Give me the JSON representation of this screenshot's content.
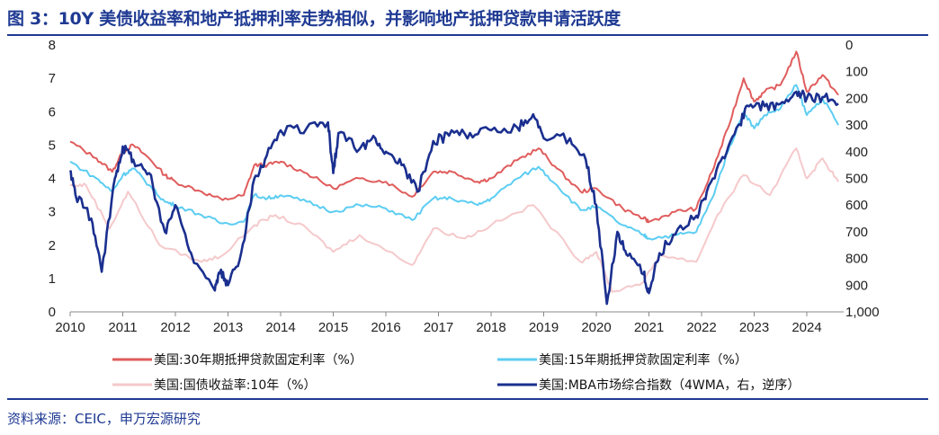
{
  "title": "图 3：10Y 美债收益率和地产抵押利率走势相似，并影响地产抵押贷款申请活跃度",
  "source": "资料来源：CEIC，申万宏源研究",
  "chart_data": {
    "type": "line",
    "title": "",
    "xlim": [
      2010,
      2024.6
    ],
    "x_ticks": [
      "2010",
      "2011",
      "2012",
      "2013",
      "2014",
      "2015",
      "2016",
      "2017",
      "2018",
      "2019",
      "2020",
      "2021",
      "2022",
      "2023",
      "2024"
    ],
    "y_left": {
      "range": [
        0,
        8
      ],
      "ticks": [
        "0",
        "1",
        "2",
        "3",
        "4",
        "5",
        "6",
        "7",
        "8"
      ]
    },
    "y_right": {
      "range": [
        0,
        1000
      ],
      "inverted": true,
      "ticks": [
        "0",
        "100",
        "200",
        "300",
        "400",
        "500",
        "600",
        "700",
        "800",
        "900",
        "1,000"
      ]
    },
    "grid": false,
    "legend_placement": "bottom",
    "series": [
      {
        "name": "美国:30年期抵押贷款固定利率（%）",
        "axis": "left",
        "color": "#e05c5c",
        "x": [
          2010,
          2010.5,
          2010.8,
          2011.0,
          2011.2,
          2011.5,
          2011.8,
          2012.0,
          2012.5,
          2012.9,
          2013.3,
          2013.5,
          2013.75,
          2014.0,
          2014.5,
          2015.0,
          2015.5,
          2016.0,
          2016.5,
          2016.9,
          2017.25,
          2017.75,
          2018.0,
          2018.5,
          2018.9,
          2019.25,
          2019.7,
          2020.0,
          2020.5,
          2020.9,
          2021.0,
          2021.5,
          2021.9,
          2022.2,
          2022.5,
          2022.8,
          2023.0,
          2023.2,
          2023.5,
          2023.8,
          2024.0,
          2024.3,
          2024.6
        ],
        "y": [
          5.1,
          4.6,
          4.2,
          4.8,
          5.0,
          4.6,
          4.1,
          3.9,
          3.6,
          3.35,
          3.5,
          4.4,
          4.4,
          4.5,
          4.15,
          3.7,
          4.0,
          3.9,
          3.45,
          4.2,
          4.2,
          3.9,
          4.0,
          4.55,
          4.9,
          4.3,
          3.6,
          3.7,
          3.1,
          2.8,
          2.7,
          3.0,
          3.1,
          4.2,
          5.5,
          7.0,
          6.3,
          6.6,
          6.8,
          7.8,
          6.6,
          7.1,
          6.5
        ]
      },
      {
        "name": "美国:15年期抵押贷款固定利率（%）",
        "axis": "left",
        "color": "#5ccdf2",
        "x": [
          2010,
          2010.5,
          2010.8,
          2011.0,
          2011.2,
          2011.5,
          2011.8,
          2012.0,
          2012.5,
          2012.9,
          2013.3,
          2013.5,
          2013.75,
          2014.0,
          2014.5,
          2015.0,
          2015.5,
          2016.0,
          2016.5,
          2016.9,
          2017.25,
          2017.75,
          2018.0,
          2018.5,
          2018.9,
          2019.25,
          2019.7,
          2020.0,
          2020.5,
          2020.9,
          2021.0,
          2021.5,
          2021.9,
          2022.2,
          2022.5,
          2022.8,
          2023.0,
          2023.2,
          2023.5,
          2023.8,
          2024.0,
          2024.3,
          2024.6
        ],
        "y": [
          4.5,
          4.0,
          3.6,
          4.1,
          4.3,
          3.8,
          3.3,
          3.2,
          2.9,
          2.65,
          2.7,
          3.5,
          3.4,
          3.5,
          3.3,
          3.0,
          3.2,
          3.1,
          2.75,
          3.4,
          3.4,
          3.2,
          3.4,
          4.0,
          4.35,
          3.8,
          3.05,
          3.15,
          2.6,
          2.3,
          2.2,
          2.3,
          2.4,
          3.4,
          4.8,
          6.0,
          5.5,
          5.9,
          6.1,
          6.8,
          5.9,
          6.4,
          5.6
        ]
      },
      {
        "name": "美国:国债收益率:10年（%）",
        "axis": "left",
        "color": "#f5c9cb",
        "x": [
          2010,
          2010.3,
          2010.75,
          2011.1,
          2011.7,
          2012.5,
          2012.9,
          2013.5,
          2013.9,
          2014.5,
          2015.0,
          2015.5,
          2016.5,
          2016.9,
          2017.5,
          2018.0,
          2018.8,
          2019.7,
          2020.0,
          2020.3,
          2020.9,
          2021.2,
          2021.9,
          2022.3,
          2022.8,
          2023.3,
          2023.8,
          2024.0,
          2024.3,
          2024.6
        ],
        "y": [
          3.8,
          3.8,
          2.5,
          3.6,
          2.0,
          1.5,
          1.7,
          2.6,
          2.9,
          2.5,
          1.8,
          2.3,
          1.4,
          2.5,
          2.2,
          2.6,
          3.2,
          1.5,
          1.8,
          0.6,
          0.9,
          1.7,
          1.5,
          2.9,
          4.1,
          3.5,
          4.9,
          4.0,
          4.6,
          3.9
        ]
      },
      {
        "name": "美国:MBA市场综合指数（4WMA，右，逆序）",
        "axis": "right",
        "color": "#1a2f8f",
        "x": [
          2010,
          2010.1,
          2010.4,
          2010.6,
          2010.85,
          2011.0,
          2011.2,
          2011.5,
          2011.8,
          2012.0,
          2012.3,
          2012.75,
          2012.85,
          2013.0,
          2013.25,
          2013.5,
          2013.7,
          2014.0,
          2014.5,
          2014.9,
          2015.0,
          2015.1,
          2015.5,
          2015.8,
          2016.0,
          2016.3,
          2016.6,
          2016.9,
          2017.2,
          2017.6,
          2018.0,
          2018.5,
          2018.8,
          2019.0,
          2019.5,
          2019.8,
          2020.0,
          2020.2,
          2020.4,
          2020.6,
          2020.9,
          2021.0,
          2021.2,
          2021.5,
          2021.9,
          2022.1,
          2022.4,
          2022.7,
          2022.9,
          2023.2,
          2023.5,
          2023.8,
          2024.0,
          2024.3,
          2024.6
        ],
        "y": [
          470,
          560,
          650,
          850,
          500,
          380,
          430,
          480,
          700,
          600,
          780,
          920,
          850,
          900,
          780,
          500,
          430,
          320,
          310,
          290,
          480,
          330,
          390,
          350,
          400,
          450,
          550,
          360,
          340,
          330,
          320,
          310,
          260,
          350,
          350,
          430,
          600,
          970,
          700,
          790,
          860,
          930,
          780,
          710,
          640,
          550,
          420,
          300,
          230,
          230,
          220,
          175,
          200,
          195,
          220
        ]
      }
    ]
  }
}
